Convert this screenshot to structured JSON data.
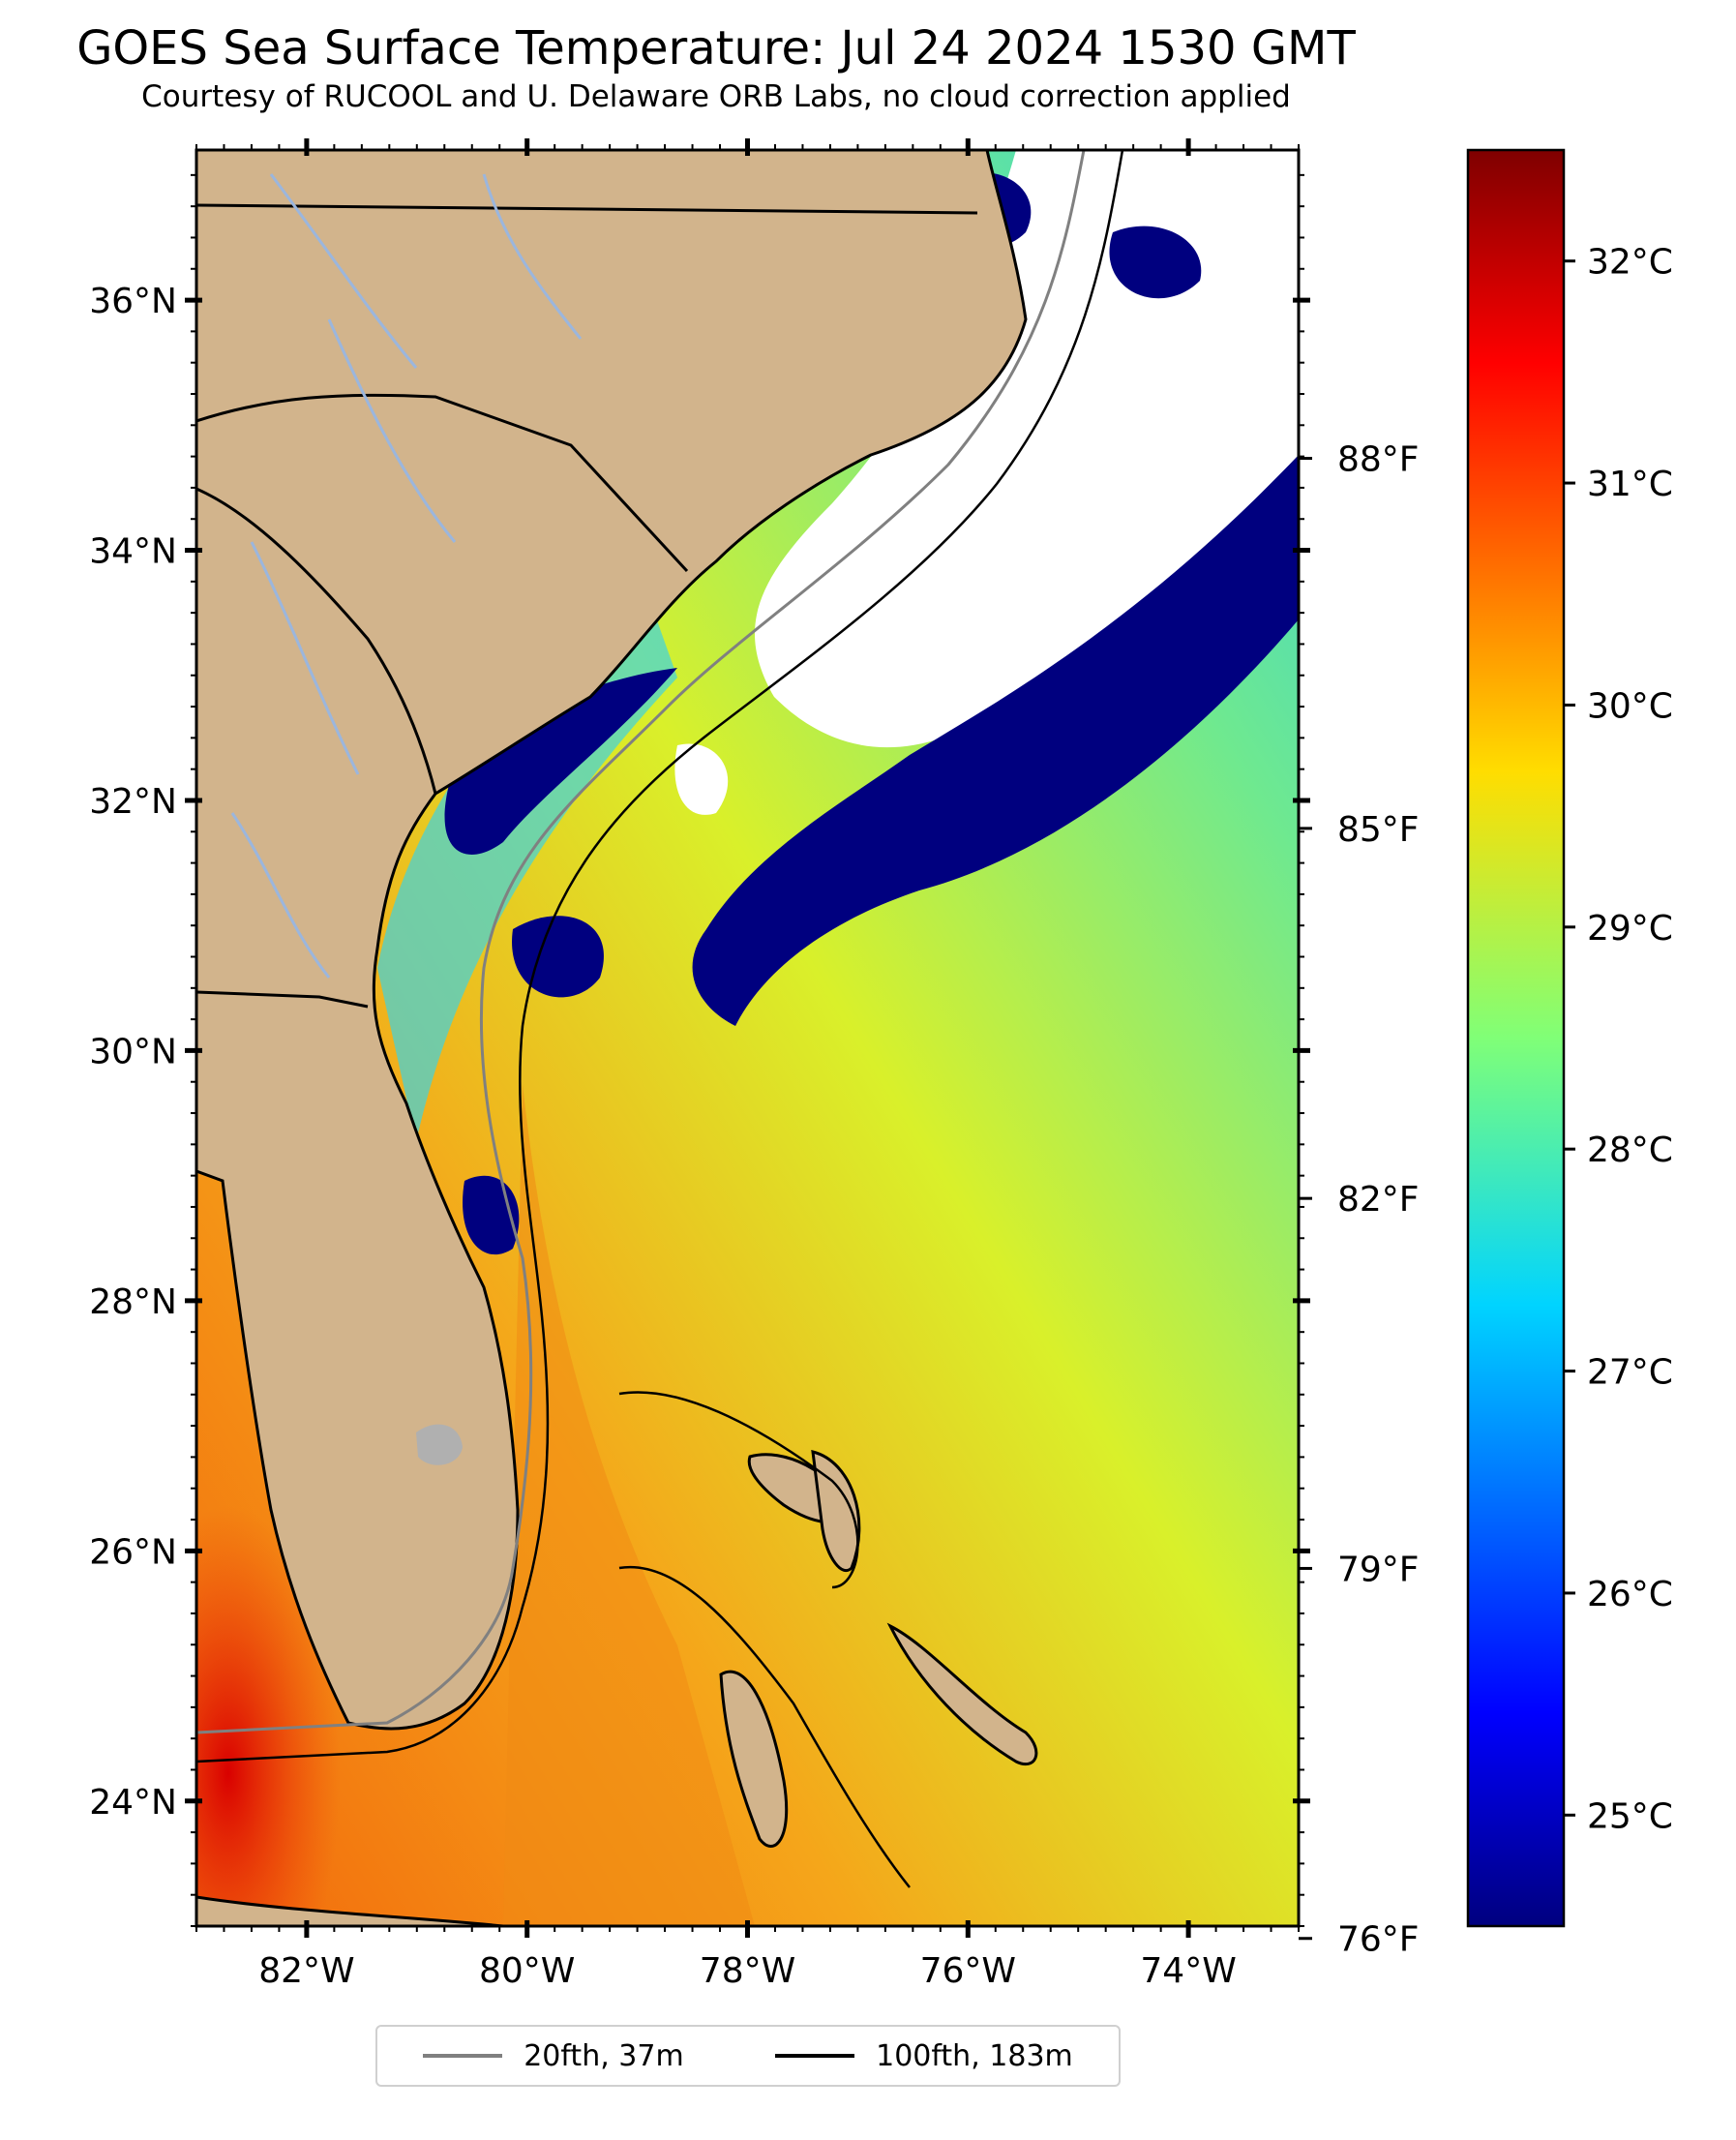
{
  "title": "GOES Sea Surface Temperature: Jul 24 2024 1530 GMT",
  "subtitle": "Courtesy of RUCOOL and U. Delaware ORB Labs, no cloud correction applied",
  "map": {
    "lon_range": [
      -83,
      -73
    ],
    "lat_range": [
      23,
      37.2
    ],
    "lat_ticks": [
      {
        "value": 36,
        "label": "36°N"
      },
      {
        "value": 34,
        "label": "34°N"
      },
      {
        "value": 32,
        "label": "32°N"
      },
      {
        "value": 30,
        "label": "30°N"
      },
      {
        "value": 28,
        "label": "28°N"
      },
      {
        "value": 26,
        "label": "26°N"
      },
      {
        "value": 24,
        "label": "24°N"
      }
    ],
    "lon_ticks": [
      {
        "value": -82,
        "label": "82°W"
      },
      {
        "value": -80,
        "label": "80°W"
      },
      {
        "value": -78,
        "label": "78°W"
      },
      {
        "value": -76,
        "label": "76°W"
      },
      {
        "value": -74,
        "label": "74°W"
      }
    ],
    "fahrenheit_ticks": [
      {
        "value": 88,
        "label": "88°F"
      },
      {
        "value": 85,
        "label": "85°F"
      },
      {
        "value": 82,
        "label": "82°F"
      },
      {
        "value": 79,
        "label": "79°F"
      },
      {
        "value": 76,
        "label": "76°F"
      }
    ],
    "land_color": "#d2b48c",
    "cloud_color": "#ffffff",
    "coastline_color": "#000000",
    "river_color": "#9bb6dd",
    "lake_color": "#b0b0b0"
  },
  "colorbar": {
    "colormap": "jet",
    "range_c": [
      24.5,
      32.5
    ],
    "ticks": [
      {
        "value": 25,
        "label": "25°C"
      },
      {
        "value": 26,
        "label": "26°C"
      },
      {
        "value": 27,
        "label": "27°C"
      },
      {
        "value": 28,
        "label": "28°C"
      },
      {
        "value": 29,
        "label": "29°C"
      },
      {
        "value": 30,
        "label": "30°C"
      },
      {
        "value": 31,
        "label": "31°C"
      },
      {
        "value": 32,
        "label": "32°C"
      }
    ]
  },
  "legend": {
    "items": [
      {
        "label": "20fth, 37m",
        "color": "#808080"
      },
      {
        "label": "100fth, 183m",
        "color": "#000000"
      }
    ]
  }
}
